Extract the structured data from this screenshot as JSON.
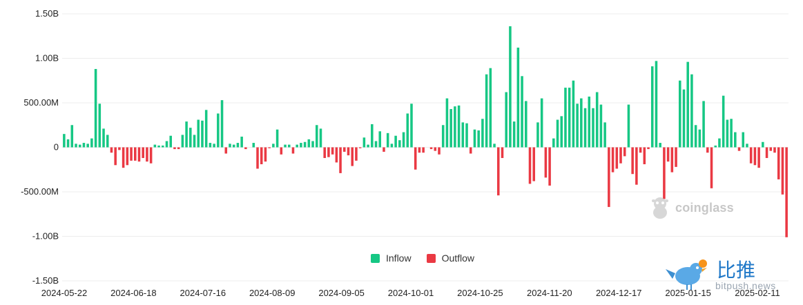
{
  "chart_data": {
    "type": "bar",
    "y_ticks": [
      "1.50B",
      "1.00B",
      "500.00M",
      "0",
      "-500.00M",
      "-1.00B",
      "-1.50B"
    ],
    "x_ticks": [
      "2024-05-22",
      "2024-06-18",
      "2024-07-16",
      "2024-08-09",
      "2024-09-05",
      "2024-10-01",
      "2024-10-25",
      "2024-11-20",
      "2024-12-17",
      "2025-01-15",
      "2025-02-11"
    ],
    "ylim": [
      -1500,
      1500
    ],
    "units": "USD millions",
    "grid": "horizontal",
    "legend_position": "bottom-center",
    "series": [
      {
        "name": "Inflow",
        "color": "#16c784"
      },
      {
        "name": "Outflow",
        "color": "#ea3943"
      }
    ],
    "values": [
      150,
      90,
      250,
      40,
      30,
      50,
      40,
      100,
      880,
      490,
      210,
      140,
      -60,
      -200,
      -30,
      -230,
      -200,
      -150,
      -150,
      -160,
      -120,
      -160,
      -180,
      30,
      20,
      20,
      70,
      130,
      -20,
      -20,
      140,
      290,
      220,
      140,
      310,
      300,
      420,
      50,
      40,
      380,
      530,
      -70,
      40,
      30,
      50,
      120,
      -20,
      0,
      50,
      -240,
      -190,
      -160,
      -10,
      40,
      200,
      -80,
      30,
      30,
      -70,
      30,
      50,
      60,
      90,
      70,
      250,
      210,
      -120,
      -110,
      -80,
      -170,
      -290,
      -50,
      -90,
      -210,
      -150,
      -10,
      110,
      30,
      260,
      70,
      180,
      -50,
      160,
      40,
      130,
      80,
      170,
      380,
      490,
      -250,
      -60,
      -60,
      0,
      -20,
      -40,
      -80,
      250,
      550,
      430,
      460,
      470,
      280,
      270,
      -70,
      200,
      190,
      320,
      820,
      890,
      40,
      -540,
      -120,
      620,
      1360,
      290,
      1120,
      800,
      520,
      -410,
      -380,
      280,
      550,
      -340,
      -430,
      100,
      310,
      350,
      670,
      670,
      750,
      490,
      550,
      440,
      570,
      440,
      620,
      480,
      280,
      -670,
      -280,
      -240,
      -180,
      -100,
      480,
      -300,
      -420,
      -60,
      -190,
      -20,
      910,
      970,
      50,
      -580,
      -160,
      -280,
      -220,
      750,
      650,
      960,
      820,
      250,
      200,
      520,
      -60,
      -460,
      20,
      100,
      580,
      310,
      320,
      170,
      -40,
      170,
      40,
      -180,
      -200,
      -230,
      60,
      -120,
      -40,
      -60,
      -360,
      -530,
      -1010
    ]
  },
  "legend": {
    "inflow_label": "Inflow",
    "outflow_label": "Outflow"
  },
  "watermark": {
    "brand": "coinglass",
    "icon": "coinglass-mascot-icon"
  },
  "corner_logo": {
    "cn_text": "比推",
    "en_text": "bitpush.news",
    "icon": "bitpush-bird-icon"
  }
}
